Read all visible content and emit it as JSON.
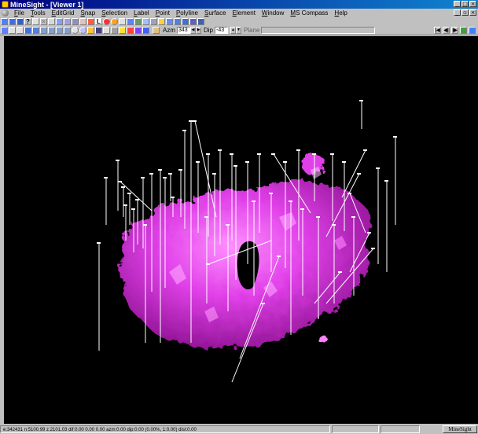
{
  "window": {
    "title": "MineSight - [Viewer 1]"
  },
  "menu": [
    "File",
    "Tools",
    "EditGrid",
    "Snap",
    "Selection",
    "Label",
    "Point",
    "Polyline",
    "Surface",
    "Element",
    "Window",
    "MS Compass",
    "Help"
  ],
  "toolbar": {
    "azm_label": "Azm",
    "azm_value": "343",
    "dip_label": "Dip",
    "dip_value": "-43",
    "plane_label": "Plane",
    "label_tool": "L"
  },
  "status": {
    "readout": "e:342431   n:5100.99   z:2101.03   dif:0.00   0.00   0.00   azm:0.00  dip:0.00 (0.00%, 1:0.00)  dist:0.00",
    "logo": "MineSight"
  },
  "colors": {
    "surface": "#e040e8",
    "drillhole": "#ffffff",
    "viewport_bg": "#000000",
    "titlebar": "#000080"
  },
  "icons": [
    "app-icon",
    "document-icon",
    "minimize-icon",
    "maximize-icon",
    "close-icon"
  ]
}
